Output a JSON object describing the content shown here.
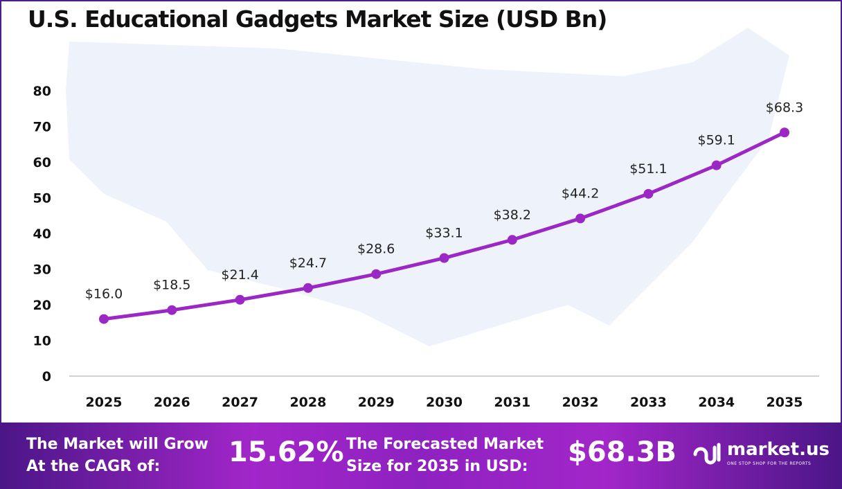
{
  "chart_data": {
    "type": "line",
    "title": "U.S. Educational Gadgets Market Size (USD Bn)",
    "categories": [
      "2025",
      "2026",
      "2027",
      "2028",
      "2029",
      "2030",
      "2031",
      "2032",
      "2033",
      "2034",
      "2035"
    ],
    "values": [
      16.0,
      18.5,
      21.4,
      24.7,
      28.6,
      33.1,
      38.2,
      44.2,
      51.1,
      59.1,
      68.3
    ],
    "data_labels": [
      "$16.0",
      "$18.5",
      "$21.4",
      "$24.7",
      "$28.6",
      "$33.1",
      "$38.2",
      "$44.2",
      "$51.1",
      "$59.1",
      "$68.3"
    ],
    "yticks": [
      0,
      10,
      20,
      30,
      40,
      50,
      60,
      70,
      80
    ],
    "ylim": [
      0,
      80
    ],
    "xlabel": "",
    "ylabel": "",
    "grid": false,
    "line_color": "#9b27c4"
  },
  "footer": {
    "cagr_text_1": "The Market will Grow",
    "cagr_text_2": "At the CAGR of:",
    "cagr_value": "15.62%",
    "forecast_text_1": "The Forecasted Market",
    "forecast_text_2": "Size for 2035 in USD:",
    "forecast_value": "$68.3B",
    "logo_name": "market.us",
    "logo_tagline": "ONE STOP SHOP FOR THE REPORTS"
  }
}
